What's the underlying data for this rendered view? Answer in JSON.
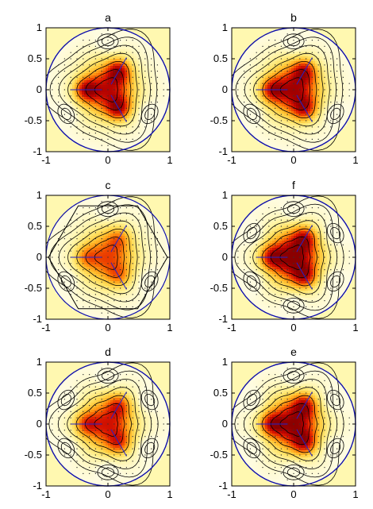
{
  "figure": {
    "panels": [
      {
        "id": "a",
        "title": "a",
        "type": "heatmap",
        "xlim": [
          -1,
          1
        ],
        "ylim": [
          -1,
          1
        ],
        "xticks": [
          "-1",
          "0",
          "1"
        ],
        "yticks": [
          "1",
          "0.5",
          "0",
          "-0.5",
          "-1"
        ],
        "center_level": 0.8,
        "lobe_level": 0.98,
        "lobe_count": 3,
        "satellite_count": 3,
        "boundary": "circle",
        "peak_color": "#dd0000"
      },
      {
        "id": "b",
        "title": "b",
        "type": "heatmap",
        "xlim": [
          -1,
          1
        ],
        "ylim": [
          -1,
          1
        ],
        "xticks": [
          "-1",
          "0",
          "1"
        ],
        "yticks": [
          "1",
          "0.5",
          "0",
          "-0.5",
          "-1"
        ],
        "center_level": 0.88,
        "lobe_level": 0.9,
        "lobe_count": 3,
        "satellite_count": 3,
        "boundary": "circle",
        "peak_color": "#e20a00"
      },
      {
        "id": "c",
        "title": "c",
        "type": "heatmap",
        "xlim": [
          -1,
          1
        ],
        "ylim": [
          -1,
          1
        ],
        "xticks": [
          "-1",
          "0",
          "1"
        ],
        "yticks": [
          "1",
          "0.5",
          "0",
          "-0.5",
          "-1"
        ],
        "center_level": 0.62,
        "lobe_level": 0.66,
        "lobe_count": 3,
        "satellite_count": 3,
        "boundary": "hexagon",
        "peak_color": "#f07000"
      },
      {
        "id": "f",
        "title": "f",
        "type": "heatmap",
        "xlim": [
          -1,
          1
        ],
        "ylim": [
          -1,
          1
        ],
        "xticks": [
          "-1",
          "0",
          "1"
        ],
        "yticks": [
          "1",
          "0.5",
          "0",
          "-0.5",
          "-1"
        ],
        "center_level": 1.0,
        "lobe_level": 0.9,
        "lobe_count": 3,
        "satellite_count": 6,
        "boundary": "circle",
        "peak_color": "#9c0000"
      },
      {
        "id": "d",
        "title": "d",
        "type": "heatmap",
        "xlim": [
          -1,
          1
        ],
        "ylim": [
          -1,
          1
        ],
        "xticks": [
          "-1",
          "0",
          "1"
        ],
        "yticks": [
          "1",
          "0.5",
          "0",
          "-0.5",
          "-1"
        ],
        "center_level": 0.74,
        "lobe_level": 0.78,
        "lobe_count": 3,
        "satellite_count": 6,
        "boundary": "circle",
        "peak_color": "#f03c00"
      },
      {
        "id": "e",
        "title": "e",
        "type": "heatmap",
        "xlim": [
          -1,
          1
        ],
        "ylim": [
          -1,
          1
        ],
        "xticks": [
          "-1",
          "0",
          "1"
        ],
        "yticks": [
          "1",
          "0.5",
          "0",
          "-0.5",
          "-1"
        ],
        "center_level": 0.95,
        "lobe_level": 0.92,
        "lobe_count": 3,
        "satellite_count": 6,
        "boundary": "circle",
        "peak_color": "#c00000"
      }
    ],
    "colors": {
      "background": "#fff8b0",
      "boundary": "#1010aa",
      "contour": "#000000",
      "arrows": "#2222cc",
      "dots": "#333333",
      "colormap": [
        "#fffce0",
        "#fff3a0",
        "#ffe060",
        "#ffc030",
        "#ff9010",
        "#f05000",
        "#dd1800",
        "#b00000",
        "#8a0000"
      ]
    }
  }
}
